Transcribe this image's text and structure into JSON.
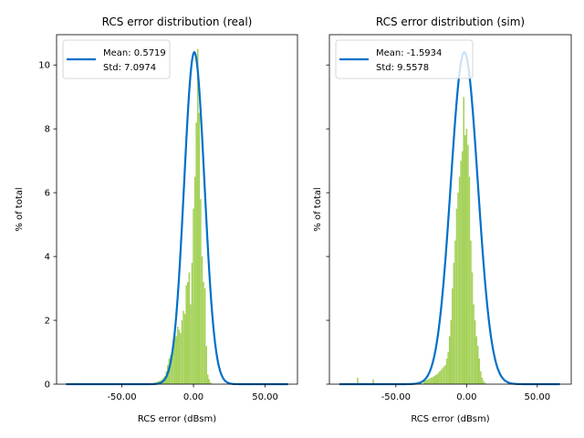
{
  "chart_data": [
    {
      "type": "histogram",
      "title": "RCS error distribution (real)",
      "xlabel": "RCS error (dBsm)",
      "ylabel": "% of total",
      "xlim": [
        -95.6,
        72.6
      ],
      "ylim": [
        0,
        10.95
      ],
      "xticks": [
        -50,
        0,
        50
      ],
      "xtick_labels": [
        "-50.00",
        "0.00",
        "50.00"
      ],
      "yticks": [
        0,
        2,
        4,
        6,
        8,
        10
      ],
      "ytick_labels": [
        "0",
        "2",
        "4",
        "6",
        "8",
        "10"
      ],
      "grid": false,
      "legend_placement": "upper-left",
      "legend": {
        "mean_label": "Mean: 0.5719",
        "std_label": "Std: 7.0974"
      },
      "bar_color": "#a5d25a",
      "curve_color": "#0070c8",
      "curve": {
        "mean": 0.5719,
        "std": 7.0974,
        "peak": 10.4,
        "x_range": [
          -89,
          66
        ]
      },
      "bins": {
        "x": [
          -30,
          -29,
          -28,
          -27,
          -26,
          -25,
          -24,
          -23,
          -22,
          -21,
          -20,
          -19,
          -18,
          -17,
          -16,
          -15,
          -14,
          -13,
          -12,
          -11,
          -10,
          -9,
          -8,
          -7,
          -6,
          -5,
          -4,
          -3,
          -2,
          -1,
          0,
          1,
          2,
          3,
          4,
          5,
          6,
          7,
          8,
          9,
          10,
          11,
          12
        ],
        "values": [
          0.02,
          0.03,
          0.04,
          0.05,
          0.06,
          0.08,
          0.1,
          0.12,
          0.15,
          0.2,
          0.25,
          0.4,
          0.6,
          0.8,
          0.9,
          1.0,
          1.3,
          1.6,
          1.5,
          1.8,
          1.7,
          1.6,
          2.0,
          2.3,
          2.2,
          3.1,
          3.2,
          3.5,
          2.5,
          3.8,
          5.5,
          6.5,
          8.2,
          10.5,
          8.5,
          5.8,
          4.0,
          3.2,
          3.0,
          1.2,
          0.3,
          0.15,
          0.05
        ]
      }
    },
    {
      "type": "histogram",
      "title": "RCS error distribution (sim)",
      "xlabel": "RCS error (dBsm)",
      "ylabel": "% of total",
      "xlim": [
        -97,
        74
      ],
      "ylim": [
        0,
        10.95
      ],
      "xticks": [
        -50,
        0,
        50
      ],
      "xtick_labels": [
        "-50.00",
        "0.00",
        "50.00"
      ],
      "yticks": [
        0,
        2,
        4,
        6,
        8,
        10
      ],
      "grid": false,
      "legend_placement": "upper-left",
      "legend": {
        "mean_label": "Mean: -1.5934",
        "std_label": "Std: 9.5578"
      },
      "bar_color": "#a5d25a",
      "curve_color": "#0070c8",
      "curve": {
        "mean": -1.5934,
        "std": 9.5578,
        "peak": 10.4,
        "x_range": [
          -90,
          66
        ]
      },
      "bins": {
        "x": [
          -77,
          -66,
          -40,
          -38,
          -36,
          -34,
          -32,
          -30,
          -29,
          -28,
          -27,
          -26,
          -25,
          -24,
          -23,
          -22,
          -21,
          -20,
          -19,
          -18,
          -17,
          -16,
          -15,
          -14,
          -13,
          -12,
          -11,
          -10,
          -9,
          -8,
          -7,
          -6,
          -5,
          -4,
          -3,
          -2,
          -1,
          0,
          1,
          2,
          3,
          4,
          5,
          6,
          7,
          8,
          9,
          10,
          11,
          12,
          13
        ],
        "values": [
          0.2,
          0.15,
          0.02,
          0.03,
          0.04,
          0.06,
          0.08,
          0.1,
          0.12,
          0.14,
          0.16,
          0.18,
          0.2,
          0.22,
          0.25,
          0.28,
          0.3,
          0.35,
          0.4,
          0.45,
          0.5,
          0.55,
          0.6,
          0.8,
          1.0,
          1.5,
          2.0,
          3.0,
          3.8,
          4.5,
          5.5,
          6.0,
          6.5,
          7.0,
          7.3,
          9.0,
          7.8,
          8.0,
          7.5,
          6.5,
          4.5,
          3.5,
          2.5,
          2.0,
          1.5,
          1.2,
          0.8,
          0.4,
          0.2,
          0.1,
          0.05
        ]
      }
    }
  ]
}
